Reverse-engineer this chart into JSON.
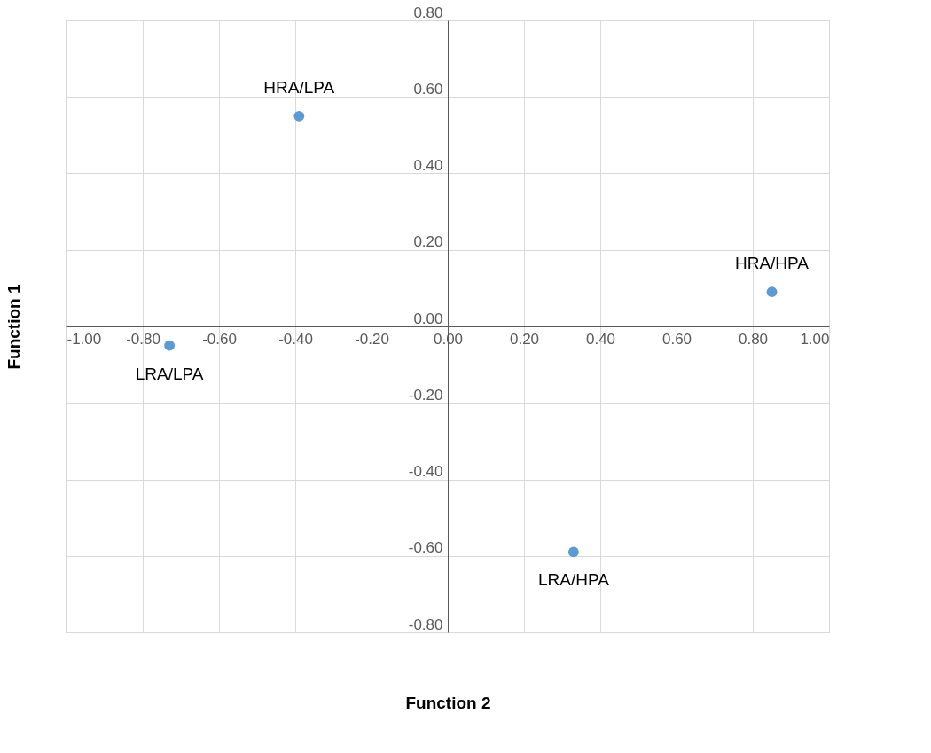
{
  "chart_data": {
    "type": "scatter",
    "xlabel": "Function 2",
    "ylabel": "Function 1",
    "x": [
      -0.39,
      0.85,
      -0.73,
      0.33
    ],
    "series": [
      {
        "color": "#5b9bd5",
        "values": [
          0.55,
          0.09,
          -0.05,
          -0.59
        ]
      }
    ],
    "xlim": [
      -1.0,
      1.0
    ],
    "ylim": [
      -0.8,
      0.8
    ],
    "xticks": [
      {
        "value": -1.0,
        "label": "-1.00"
      },
      {
        "value": -0.8,
        "label": "-0.80"
      },
      {
        "value": -0.6,
        "label": "-0.60"
      },
      {
        "value": -0.4,
        "label": "-0.40"
      },
      {
        "value": -0.2,
        "label": "-0.20"
      },
      {
        "value": 0,
        "label": "0.00"
      },
      {
        "value": 0.2,
        "label": "0.20"
      },
      {
        "value": 0.4,
        "label": "0.40"
      },
      {
        "value": 0.6,
        "label": "0.60"
      },
      {
        "value": 0.8,
        "label": "0.80"
      },
      {
        "value": 1.0,
        "label": "1.00"
      }
    ],
    "yticks": [
      {
        "value": -0.8,
        "label": "-0.80"
      },
      {
        "value": -0.6,
        "label": "-0.60"
      },
      {
        "value": -0.4,
        "label": "-0.40"
      },
      {
        "value": -0.2,
        "label": "-0.20"
      },
      {
        "value": 0,
        "label": "0.00"
      },
      {
        "value": 0.2,
        "label": "0.20"
      },
      {
        "value": 0.4,
        "label": "0.40"
      },
      {
        "value": 0.6,
        "label": "0.60"
      },
      {
        "value": 0.8,
        "label": "0.80"
      }
    ],
    "annotations": [
      {
        "text": "HRA/LPA",
        "x": -0.39,
        "y": 0.55
      },
      {
        "text": "HRA/HPA",
        "x": 0.85,
        "y": 0.09
      },
      {
        "text": "LRA/LPA",
        "x": -0.73,
        "y": -0.05
      },
      {
        "text": "LRA/HPA",
        "x": 0.33,
        "y": -0.59
      }
    ],
    "grid": true,
    "marker": "circle"
  }
}
